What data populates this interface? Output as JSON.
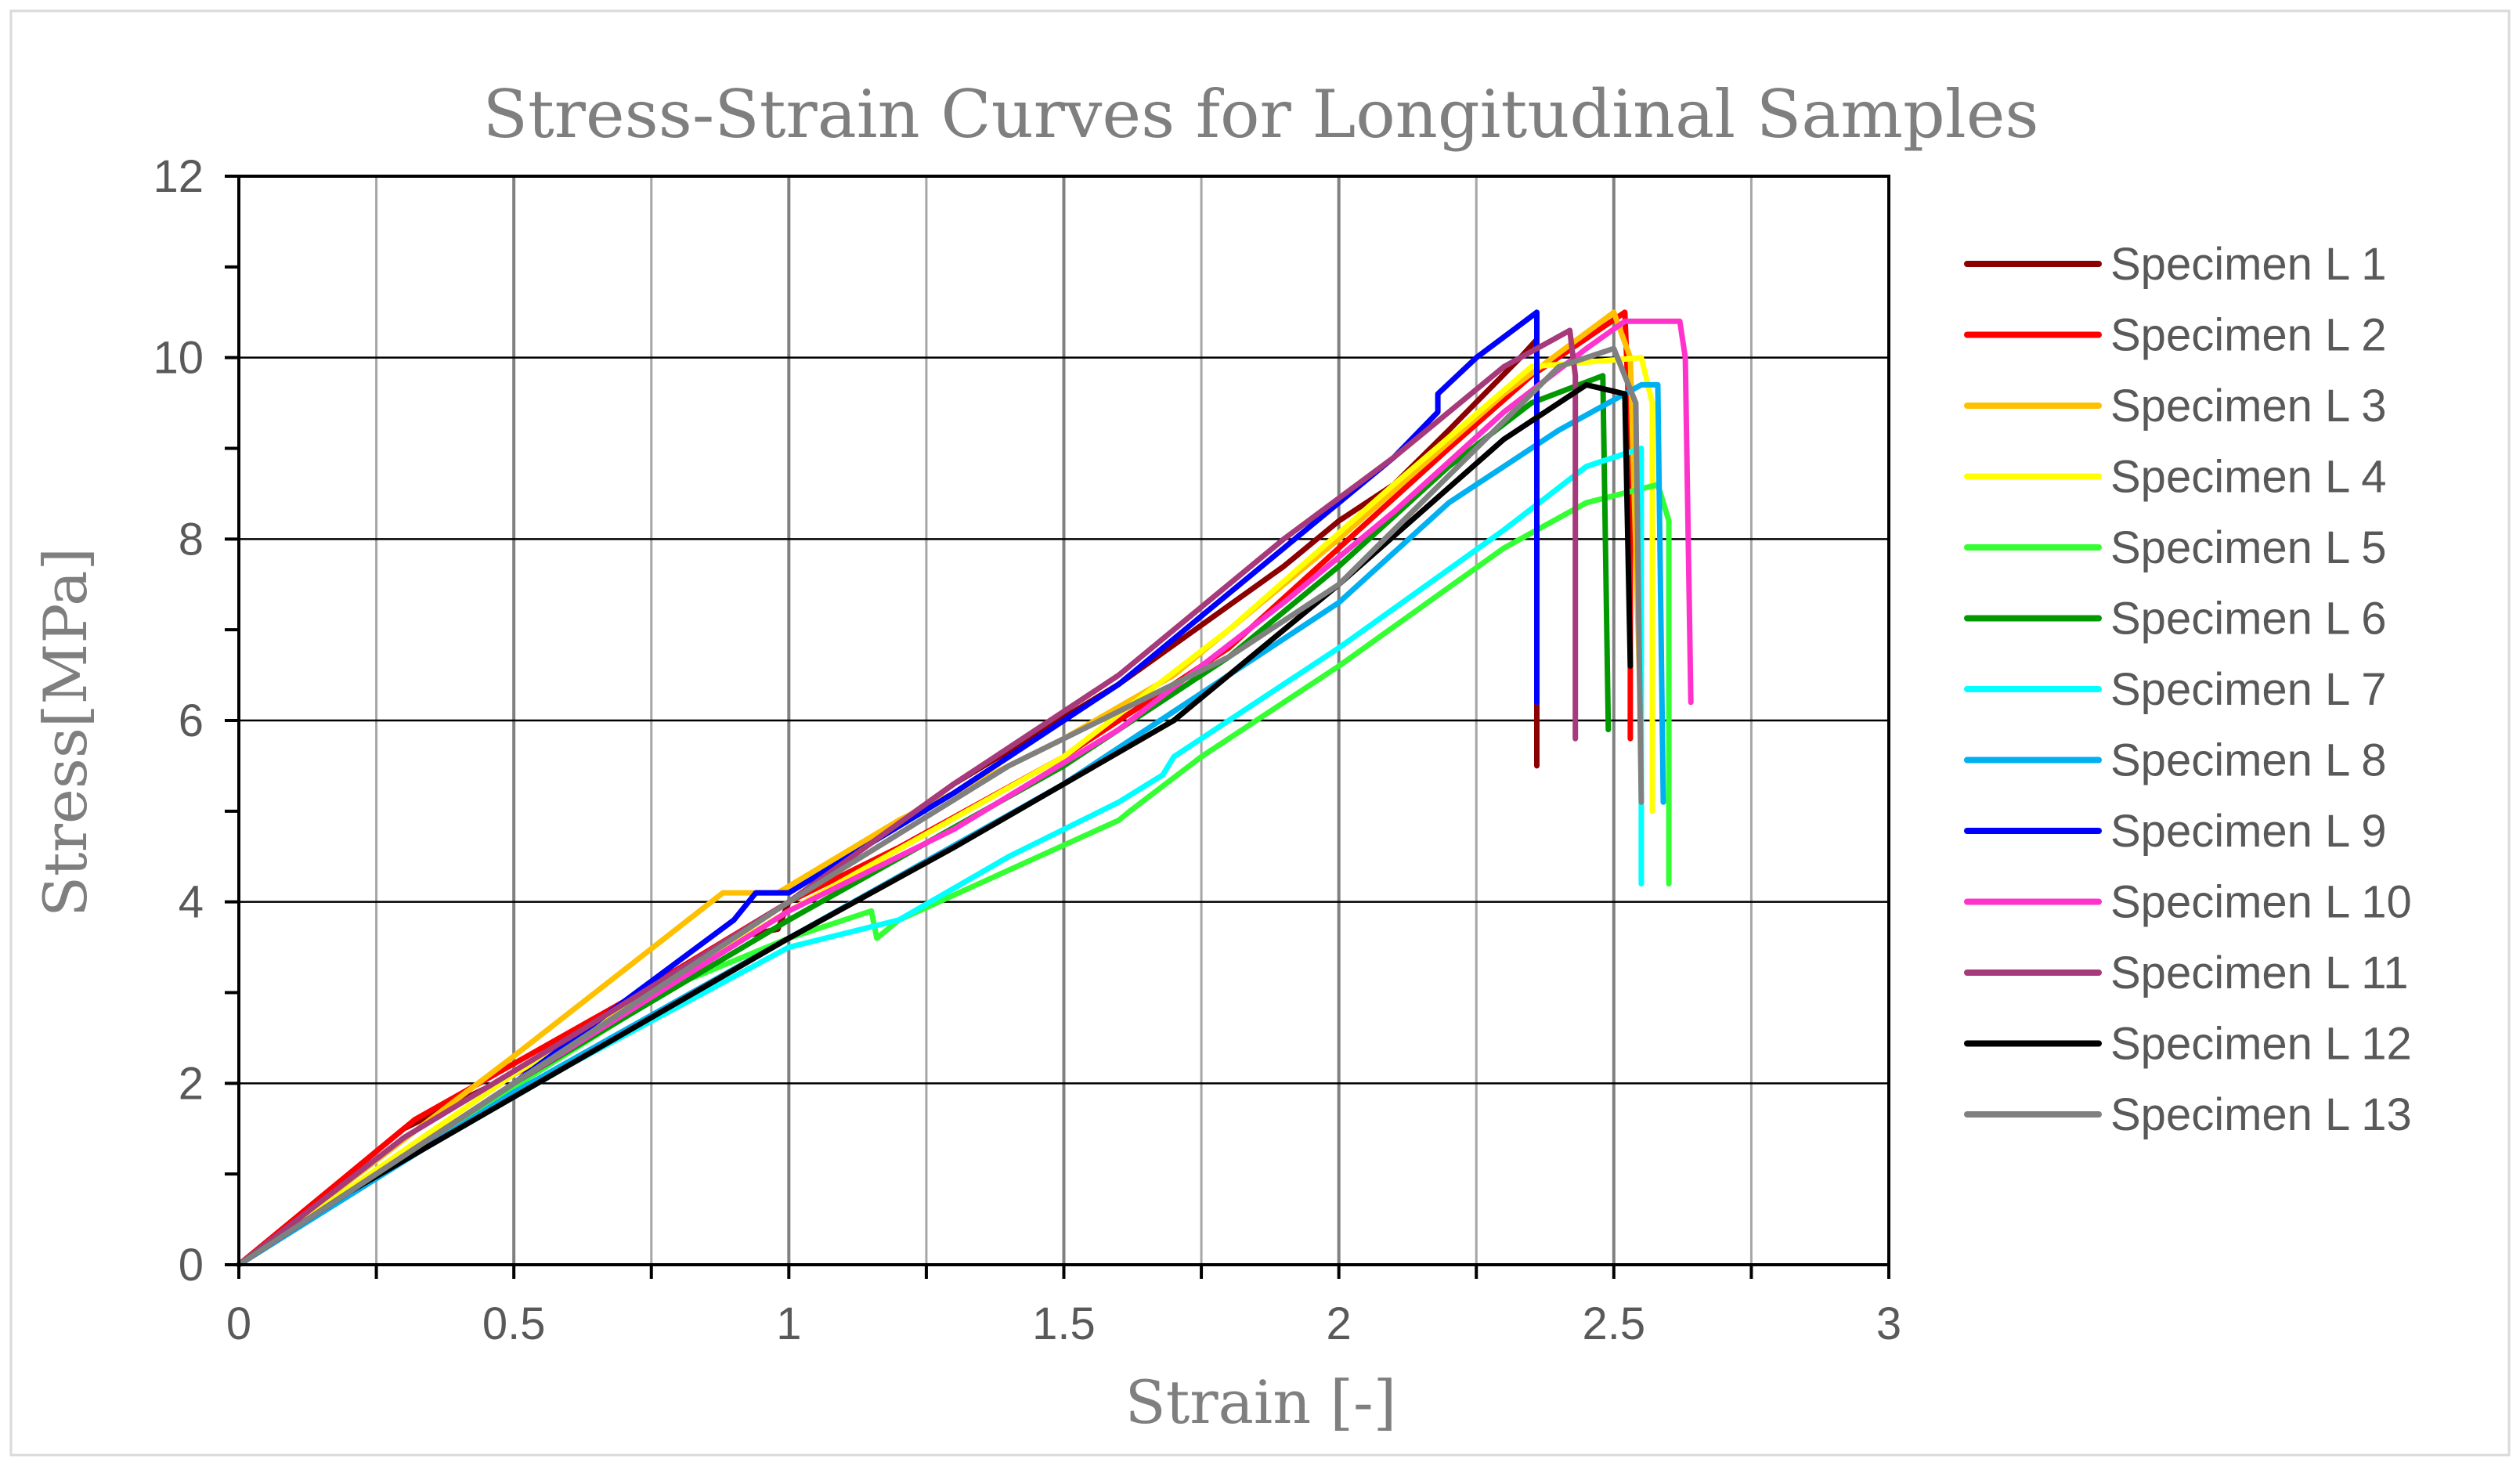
{
  "chart_data": {
    "type": "line",
    "title": "Stress-Strain Curves for Longitudinal Samples",
    "xlabel": "Strain [-]",
    "ylabel": "Stress[MPa]",
    "xlim": [
      0,
      3
    ],
    "ylim": [
      0,
      12
    ],
    "x_ticks": [
      "0",
      "0.5",
      "1",
      "1.5",
      "2",
      "2.5",
      "3"
    ],
    "y_ticks": [
      "0",
      "2",
      "4",
      "6",
      "8",
      "10",
      "12"
    ],
    "grid": true,
    "legend_position": "right",
    "series": [
      {
        "name": "Specimen L 1",
        "color": "#8b0000",
        "points": [
          [
            0,
            0
          ],
          [
            0.3,
            1.5
          ],
          [
            0.6,
            2.4
          ],
          [
            0.9,
            3.6
          ],
          [
            0.98,
            3.7
          ],
          [
            1.0,
            4.0
          ],
          [
            1.3,
            5.3
          ],
          [
            1.6,
            6.4
          ],
          [
            1.9,
            7.7
          ],
          [
            2.0,
            8.2
          ],
          [
            2.1,
            8.6
          ],
          [
            2.2,
            9.2
          ],
          [
            2.33,
            10.0
          ],
          [
            2.36,
            10.2
          ],
          [
            2.36,
            5.5
          ]
        ]
      },
      {
        "name": "Specimen L 2",
        "color": "#ff0000",
        "points": [
          [
            0,
            0
          ],
          [
            0.32,
            1.6
          ],
          [
            0.7,
            2.9
          ],
          [
            1.0,
            4.0
          ],
          [
            1.2,
            4.6
          ],
          [
            1.5,
            5.6
          ],
          [
            1.8,
            6.8
          ],
          [
            2.0,
            7.9
          ],
          [
            2.2,
            9.0
          ],
          [
            2.35,
            9.8
          ],
          [
            2.52,
            10.5
          ],
          [
            2.53,
            9.0
          ],
          [
            2.53,
            5.8
          ]
        ]
      },
      {
        "name": "Specimen L 3",
        "color": "#ffc000",
        "points": [
          [
            0,
            0
          ],
          [
            0.5,
            2.3
          ],
          [
            0.88,
            4.1
          ],
          [
            0.98,
            4.1
          ],
          [
            1.2,
            4.9
          ],
          [
            1.5,
            5.8
          ],
          [
            1.7,
            6.5
          ],
          [
            2.0,
            8.0
          ],
          [
            2.3,
            9.6
          ],
          [
            2.5,
            10.5
          ],
          [
            2.53,
            10.0
          ],
          [
            2.55,
            5.8
          ]
        ]
      },
      {
        "name": "Specimen L 4",
        "color": "#ffff00",
        "points": [
          [
            0,
            0
          ],
          [
            0.5,
            2.1
          ],
          [
            1.0,
            3.9
          ],
          [
            1.5,
            5.6
          ],
          [
            1.8,
            7.0
          ],
          [
            2.1,
            8.6
          ],
          [
            2.35,
            9.9
          ],
          [
            2.55,
            10.0
          ],
          [
            2.57,
            9.5
          ],
          [
            2.57,
            5.0
          ]
        ]
      },
      {
        "name": "Specimen L 5",
        "color": "#33ff33",
        "points": [
          [
            0,
            0
          ],
          [
            0.3,
            1.2
          ],
          [
            0.8,
            3.1
          ],
          [
            1.0,
            3.6
          ],
          [
            1.15,
            3.9
          ],
          [
            1.16,
            3.6
          ],
          [
            1.2,
            3.8
          ],
          [
            1.6,
            4.9
          ],
          [
            1.62,
            5.0
          ],
          [
            1.75,
            5.6
          ],
          [
            2.0,
            6.6
          ],
          [
            2.3,
            7.9
          ],
          [
            2.45,
            8.4
          ],
          [
            2.58,
            8.6
          ],
          [
            2.6,
            8.2
          ],
          [
            2.6,
            4.2
          ]
        ]
      },
      {
        "name": "Specimen L 6",
        "color": "#009900",
        "points": [
          [
            0,
            0
          ],
          [
            0.5,
            2.0
          ],
          [
            1.0,
            3.8
          ],
          [
            1.5,
            5.5
          ],
          [
            1.8,
            6.7
          ],
          [
            2.0,
            7.7
          ],
          [
            2.2,
            8.8
          ],
          [
            2.35,
            9.5
          ],
          [
            2.48,
            9.8
          ],
          [
            2.49,
            5.9
          ]
        ]
      },
      {
        "name": "Specimen L 7",
        "color": "#00ffff",
        "points": [
          [
            0,
            0
          ],
          [
            0.2,
            0.8
          ],
          [
            0.6,
            2.2
          ],
          [
            1.0,
            3.5
          ],
          [
            1.2,
            3.8
          ],
          [
            1.4,
            4.5
          ],
          [
            1.6,
            5.1
          ],
          [
            1.68,
            5.4
          ],
          [
            1.7,
            5.6
          ],
          [
            2.0,
            6.8
          ],
          [
            2.3,
            8.1
          ],
          [
            2.45,
            8.8
          ],
          [
            2.55,
            9.0
          ],
          [
            2.55,
            4.2
          ]
        ]
      },
      {
        "name": "Specimen L 8",
        "color": "#00b0f0",
        "points": [
          [
            0,
            0
          ],
          [
            0.5,
            1.9
          ],
          [
            1.0,
            3.6
          ],
          [
            1.5,
            5.3
          ],
          [
            1.8,
            6.5
          ],
          [
            2.0,
            7.3
          ],
          [
            2.2,
            8.4
          ],
          [
            2.4,
            9.2
          ],
          [
            2.55,
            9.7
          ],
          [
            2.58,
            9.7
          ],
          [
            2.59,
            5.1
          ]
        ]
      },
      {
        "name": "Specimen L 9",
        "color": "#0000ff",
        "points": [
          [
            0,
            0
          ],
          [
            0.5,
            2.0
          ],
          [
            0.9,
            3.8
          ],
          [
            0.94,
            4.1
          ],
          [
            1.0,
            4.1
          ],
          [
            1.3,
            5.2
          ],
          [
            1.6,
            6.4
          ],
          [
            1.9,
            7.9
          ],
          [
            2.1,
            8.9
          ],
          [
            2.18,
            9.4
          ],
          [
            2.18,
            9.6
          ],
          [
            2.25,
            10.0
          ],
          [
            2.36,
            10.5
          ],
          [
            2.36,
            6.2
          ]
        ]
      },
      {
        "name": "Specimen L 10",
        "color": "#ff33cc",
        "points": [
          [
            0,
            0
          ],
          [
            0.5,
            2.0
          ],
          [
            1.0,
            3.9
          ],
          [
            1.3,
            4.8
          ],
          [
            1.6,
            5.9
          ],
          [
            1.9,
            7.3
          ],
          [
            2.1,
            8.3
          ],
          [
            2.3,
            9.4
          ],
          [
            2.45,
            10.1
          ],
          [
            2.52,
            10.4
          ],
          [
            2.62,
            10.4
          ],
          [
            2.63,
            10.0
          ],
          [
            2.64,
            6.2
          ]
        ]
      },
      {
        "name": "Specimen L 11",
        "color": "#a63a7a",
        "points": [
          [
            0,
            0
          ],
          [
            0.3,
            1.4
          ],
          [
            0.6,
            2.5
          ],
          [
            1.0,
            4.0
          ],
          [
            1.3,
            5.3
          ],
          [
            1.6,
            6.5
          ],
          [
            1.9,
            8.0
          ],
          [
            2.1,
            8.9
          ],
          [
            2.3,
            9.9
          ],
          [
            2.42,
            10.3
          ],
          [
            2.43,
            9.8
          ],
          [
            2.43,
            5.8
          ]
        ]
      },
      {
        "name": "Specimen L 12",
        "color": "#000000",
        "points": [
          [
            0,
            0
          ],
          [
            0.2,
            0.8
          ],
          [
            0.6,
            2.2
          ],
          [
            1.0,
            3.6
          ],
          [
            1.3,
            4.6
          ],
          [
            1.7,
            6.0
          ],
          [
            2.0,
            7.5
          ],
          [
            2.3,
            9.1
          ],
          [
            2.45,
            9.7
          ],
          [
            2.52,
            9.6
          ],
          [
            2.53,
            6.6
          ]
        ]
      },
      {
        "name": "Specimen L 13",
        "color": "#808080",
        "points": [
          [
            0,
            0
          ],
          [
            0.5,
            2.0
          ],
          [
            1.0,
            4.0
          ],
          [
            1.4,
            5.5
          ],
          [
            1.8,
            6.7
          ],
          [
            2.0,
            7.5
          ],
          [
            2.2,
            8.7
          ],
          [
            2.4,
            9.9
          ],
          [
            2.5,
            10.1
          ],
          [
            2.54,
            9.5
          ],
          [
            2.55,
            5.1
          ]
        ]
      }
    ]
  }
}
